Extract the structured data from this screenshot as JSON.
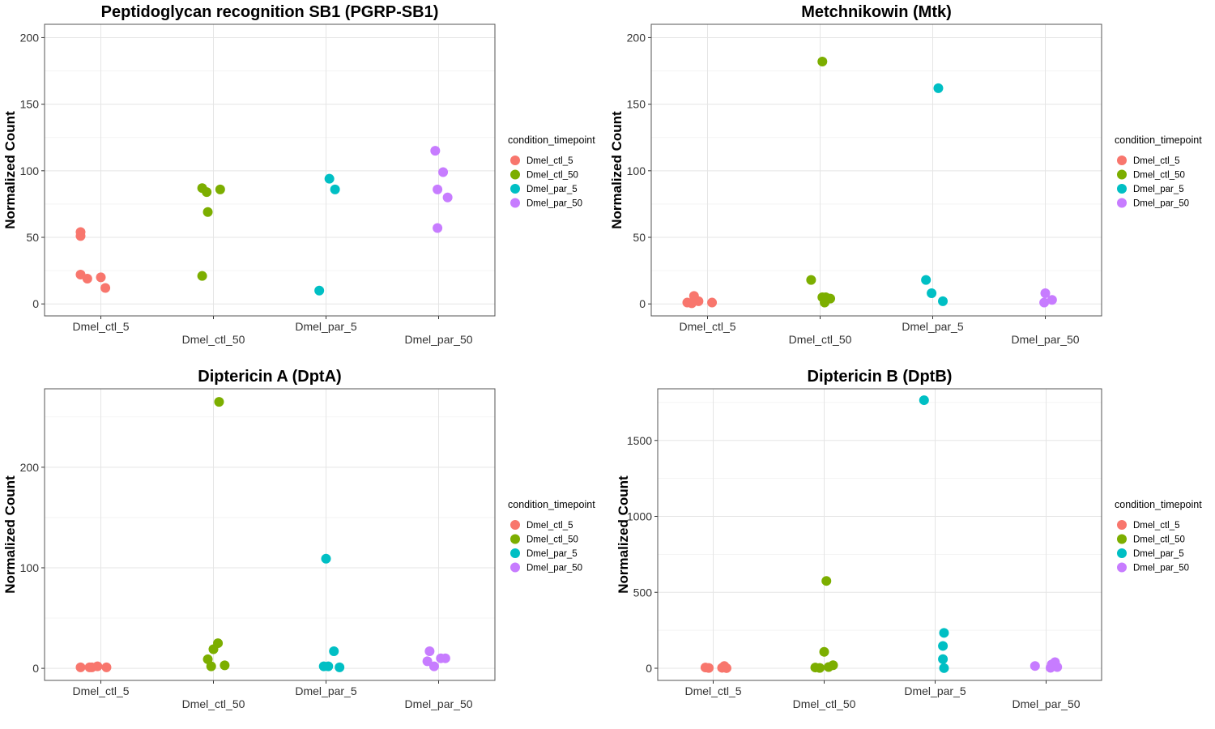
{
  "chart_data": [
    {
      "type": "scatter",
      "title": "Peptidoglycan recognition SB1 (PGRP-SB1)",
      "ylabel": "Normalized Count",
      "xlabel": "",
      "categories": [
        "Dmel_ctl_5",
        "Dmel_ctl_50",
        "Dmel_par_5",
        "Dmel_par_50"
      ],
      "ylim": [
        -9,
        210
      ],
      "yticks": [
        0,
        50,
        100,
        150,
        200
      ],
      "grid": true,
      "legend": {
        "title": "condition_timepoint",
        "position": "right",
        "labels": [
          "Dmel_ctl_5",
          "Dmel_ctl_50",
          "Dmel_par_5",
          "Dmel_par_50"
        ]
      },
      "series": [
        {
          "name": "Dmel_ctl_5",
          "color": "#F8766D",
          "points": [
            [
              -0.18,
              54
            ],
            [
              -0.18,
              51
            ],
            [
              -0.18,
              22
            ],
            [
              -0.12,
              19
            ],
            [
              0.0,
              20
            ],
            [
              0.04,
              12
            ]
          ]
        },
        {
          "name": "Dmel_ctl_50",
          "color": "#7CAE00",
          "points": [
            [
              -0.1,
              87
            ],
            [
              -0.06,
              84
            ],
            [
              0.06,
              86
            ],
            [
              -0.05,
              69
            ],
            [
              -0.1,
              21
            ]
          ]
        },
        {
          "name": "Dmel_par_5",
          "color": "#00BFC4",
          "points": [
            [
              0.03,
              94
            ],
            [
              0.08,
              86
            ],
            [
              -0.06,
              10
            ]
          ]
        },
        {
          "name": "Dmel_par_50",
          "color": "#C77CFF",
          "points": [
            [
              -0.03,
              115
            ],
            [
              0.04,
              99
            ],
            [
              -0.01,
              86
            ],
            [
              0.08,
              80
            ],
            [
              -0.01,
              57
            ]
          ]
        }
      ]
    },
    {
      "type": "scatter",
      "title": "Metchnikowin (Mtk)",
      "ylabel": "Normalized Count",
      "xlabel": "",
      "categories": [
        "Dmel_ctl_5",
        "Dmel_ctl_50",
        "Dmel_par_5",
        "Dmel_par_50"
      ],
      "ylim": [
        -9,
        210
      ],
      "yticks": [
        0,
        50,
        100,
        150,
        200
      ],
      "grid": true,
      "legend": {
        "title": "condition_timepoint",
        "position": "right",
        "labels": [
          "Dmel_ctl_5",
          "Dmel_ctl_50",
          "Dmel_par_5",
          "Dmel_par_50"
        ]
      },
      "series": [
        {
          "name": "Dmel_ctl_5",
          "color": "#F8766D",
          "points": [
            [
              -0.18,
              1
            ],
            [
              -0.12,
              6
            ],
            [
              -0.08,
              2
            ],
            [
              0.04,
              1
            ],
            [
              -0.14,
              0.5
            ]
          ]
        },
        {
          "name": "Dmel_ctl_50",
          "color": "#7CAE00",
          "points": [
            [
              0.02,
              182
            ],
            [
              -0.08,
              18
            ],
            [
              0.02,
              5
            ],
            [
              0.05,
              5
            ],
            [
              0.09,
              4
            ],
            [
              0.04,
              1
            ]
          ]
        },
        {
          "name": "Dmel_par_5",
          "color": "#00BFC4",
          "points": [
            [
              0.05,
              162
            ],
            [
              -0.06,
              18
            ],
            [
              -0.01,
              8
            ],
            [
              0.09,
              2
            ]
          ]
        },
        {
          "name": "Dmel_par_50",
          "color": "#C77CFF",
          "points": [
            [
              0.0,
              8
            ],
            [
              0.06,
              3
            ],
            [
              -0.01,
              1
            ]
          ]
        }
      ]
    },
    {
      "type": "scatter",
      "title": "Diptericin A (DptA)",
      "ylabel": "Normalized Count",
      "xlabel": "",
      "categories": [
        "Dmel_ctl_5",
        "Dmel_ctl_50",
        "Dmel_par_5",
        "Dmel_par_50"
      ],
      "ylim": [
        -12,
        278
      ],
      "yticks": [
        0,
        100,
        200
      ],
      "grid": true,
      "legend": {
        "title": "condition_timepoint",
        "position": "right",
        "labels": [
          "Dmel_ctl_5",
          "Dmel_ctl_50",
          "Dmel_par_5",
          "Dmel_par_50"
        ]
      },
      "series": [
        {
          "name": "Dmel_ctl_5",
          "color": "#F8766D",
          "points": [
            [
              -0.18,
              1
            ],
            [
              -0.1,
              1
            ],
            [
              -0.03,
              2
            ],
            [
              0.05,
              1
            ],
            [
              -0.08,
              1
            ]
          ]
        },
        {
          "name": "Dmel_ctl_50",
          "color": "#7CAE00",
          "points": [
            [
              0.05,
              265
            ],
            [
              0.04,
              25
            ],
            [
              0.0,
              19
            ],
            [
              -0.05,
              9
            ],
            [
              -0.02,
              2
            ],
            [
              0.1,
              3
            ]
          ]
        },
        {
          "name": "Dmel_par_5",
          "color": "#00BFC4",
          "points": [
            [
              0.0,
              109
            ],
            [
              0.07,
              17
            ],
            [
              -0.02,
              2
            ],
            [
              0.02,
              2
            ],
            [
              0.12,
              1
            ]
          ]
        },
        {
          "name": "Dmel_par_50",
          "color": "#C77CFF",
          "points": [
            [
              -0.08,
              17
            ],
            [
              -0.1,
              7
            ],
            [
              0.02,
              10
            ],
            [
              0.06,
              10
            ],
            [
              -0.04,
              2
            ]
          ]
        }
      ]
    },
    {
      "type": "scatter",
      "title": "Diptericin B (DptB)",
      "ylabel": "Normalized Count",
      "xlabel": "",
      "categories": [
        "Dmel_ctl_5",
        "Dmel_ctl_50",
        "Dmel_par_5",
        "Dmel_par_50"
      ],
      "ylim": [
        -80,
        1840
      ],
      "yticks": [
        0,
        500,
        1000,
        1500
      ],
      "grid": true,
      "legend": {
        "title": "condition_timepoint",
        "position": "right",
        "labels": [
          "Dmel_ctl_5",
          "Dmel_ctl_50",
          "Dmel_par_5",
          "Dmel_par_50"
        ]
      },
      "series": [
        {
          "name": "Dmel_ctl_5",
          "color": "#F8766D",
          "points": [
            [
              -0.07,
              5
            ],
            [
              -0.04,
              2
            ],
            [
              0.1,
              15
            ],
            [
              0.08,
              3
            ],
            [
              0.12,
              1
            ]
          ]
        },
        {
          "name": "Dmel_ctl_50",
          "color": "#7CAE00",
          "points": [
            [
              0.02,
              575
            ],
            [
              0.0,
              108
            ],
            [
              0.08,
              20
            ],
            [
              -0.08,
              5
            ],
            [
              -0.04,
              2
            ],
            [
              0.04,
              8
            ]
          ]
        },
        {
          "name": "Dmel_par_5",
          "color": "#00BFC4",
          "points": [
            [
              -0.1,
              1765
            ],
            [
              0.08,
              233
            ],
            [
              0.07,
              147
            ],
            [
              0.07,
              60
            ],
            [
              0.08,
              1
            ]
          ]
        },
        {
          "name": "Dmel_par_50",
          "color": "#C77CFF",
          "points": [
            [
              -0.1,
              15
            ],
            [
              0.05,
              25
            ],
            [
              0.08,
              40
            ],
            [
              0.1,
              8
            ],
            [
              0.04,
              3
            ]
          ]
        }
      ]
    }
  ]
}
